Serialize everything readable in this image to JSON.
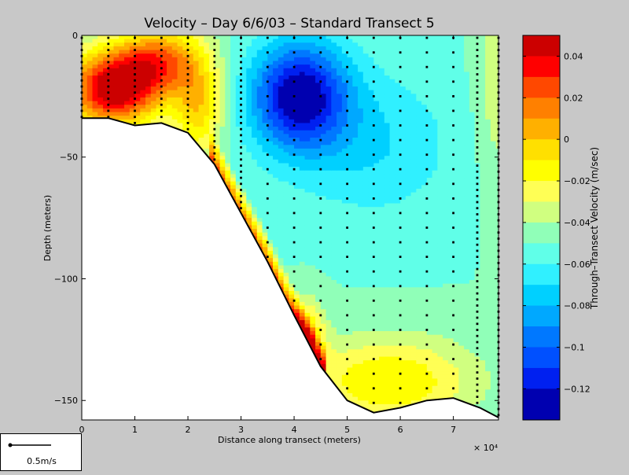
{
  "chart_data": {
    "type": "heatmap",
    "title": "Velocity – Day 6/6/03 – Standard Transect 5",
    "xlabel": "Distance along transect (meters)",
    "ylabel": "Depth (meters)",
    "x_multiplier": "× 10⁴",
    "xlim": [
      0,
      78500
    ],
    "ylim": [
      -158,
      0
    ],
    "x_ticks": [
      0,
      10000,
      20000,
      30000,
      40000,
      50000,
      60000,
      70000
    ],
    "x_tick_labels": [
      "0",
      "1",
      "2",
      "3",
      "4",
      "5",
      "6",
      "7"
    ],
    "y_ticks": [
      0,
      -50,
      -100,
      -150
    ],
    "y_tick_labels": [
      "0",
      "−50",
      "−100",
      "−150"
    ],
    "colorbar": {
      "label": "Through–Transect Velocity (m/sec)",
      "range": [
        -0.135,
        0.05
      ],
      "ticks": [
        0.04,
        0.02,
        0,
        -0.02,
        -0.04,
        -0.06,
        -0.08,
        -0.1,
        -0.12
      ],
      "tick_labels": [
        "0.04",
        "0.02",
        "0",
        "−0.02",
        "−0.04",
        "−0.06",
        "−0.08",
        "−0.1",
        "−0.12"
      ],
      "levels": [
        {
          "lo": 0.04,
          "hi": 0.05,
          "color": "#cc0000"
        },
        {
          "lo": 0.03,
          "hi": 0.04,
          "color": "#ff0000"
        },
        {
          "lo": 0.02,
          "hi": 0.03,
          "color": "#ff4800"
        },
        {
          "lo": 0.01,
          "hi": 0.02,
          "color": "#ff8000"
        },
        {
          "lo": 0.0,
          "hi": 0.01,
          "color": "#ffb000"
        },
        {
          "lo": -0.01,
          "hi": 0.0,
          "color": "#ffe000"
        },
        {
          "lo": -0.02,
          "hi": -0.01,
          "color": "#ffff00"
        },
        {
          "lo": -0.03,
          "hi": -0.02,
          "color": "#ffff55"
        },
        {
          "lo": -0.04,
          "hi": -0.03,
          "color": "#d0ff80"
        },
        {
          "lo": -0.05,
          "hi": -0.04,
          "color": "#90ffb8"
        },
        {
          "lo": -0.06,
          "hi": -0.05,
          "color": "#60ffe8"
        },
        {
          "lo": -0.07,
          "hi": -0.06,
          "color": "#30f0ff"
        },
        {
          "lo": -0.08,
          "hi": -0.07,
          "color": "#00d0ff"
        },
        {
          "lo": -0.09,
          "hi": -0.08,
          "color": "#00a8ff"
        },
        {
          "lo": -0.1,
          "hi": -0.09,
          "color": "#0078ff"
        },
        {
          "lo": -0.11,
          "hi": -0.1,
          "color": "#0050ff"
        },
        {
          "lo": -0.12,
          "hi": -0.11,
          "color": "#0020f0"
        },
        {
          "lo": -0.135,
          "hi": -0.12,
          "color": "#0000b0"
        }
      ]
    },
    "grid": false,
    "bathymetry": [
      {
        "x": 0,
        "depth": -34
      },
      {
        "x": 5000,
        "depth": -34
      },
      {
        "x": 10000,
        "depth": -37
      },
      {
        "x": 15000,
        "depth": -36
      },
      {
        "x": 20000,
        "depth": -40
      },
      {
        "x": 25000,
        "depth": -53
      },
      {
        "x": 30000,
        "depth": -73
      },
      {
        "x": 35000,
        "depth": -93
      },
      {
        "x": 40000,
        "depth": -115
      },
      {
        "x": 45000,
        "depth": -136
      },
      {
        "x": 50000,
        "depth": -150
      },
      {
        "x": 55000,
        "depth": -155
      },
      {
        "x": 60000,
        "depth": -153
      },
      {
        "x": 65000,
        "depth": -150
      },
      {
        "x": 70000,
        "depth": -149
      },
      {
        "x": 75000,
        "depth": -153
      },
      {
        "x": 78500,
        "depth": -157
      }
    ],
    "stations_x": [
      0,
      5000,
      10000,
      15000,
      20000,
      25000,
      30000,
      35000,
      40000,
      45000,
      50000,
      55000,
      60000,
      65000,
      70000,
      74500,
      78500
    ],
    "velocity_features": [
      {
        "kind": "surface_jet",
        "x": [
          0,
          23000
        ],
        "depth": [
          0,
          -35
        ],
        "peak_velocity": 0.045
      },
      {
        "kind": "core_minimum",
        "x": [
          32000,
          50000
        ],
        "depth": [
          -5,
          -55
        ],
        "peak_velocity": -0.13
      },
      {
        "kind": "bottom_layer",
        "x": [
          35000,
          78500
        ],
        "depth": [
          -120,
          -155
        ],
        "peak_velocity": -0.01
      }
    ]
  },
  "scale": {
    "label": "0.5m/s"
  }
}
